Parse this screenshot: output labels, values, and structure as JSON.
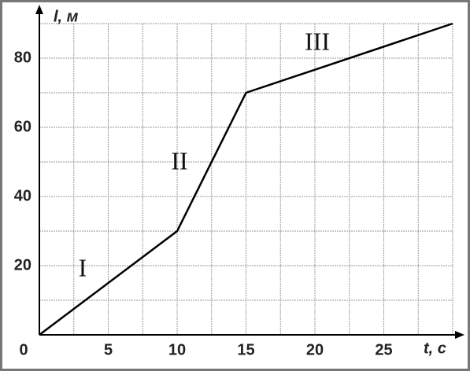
{
  "chart_data": {
    "type": "line",
    "x": [
      0,
      10,
      15,
      30
    ],
    "values": [
      0,
      30,
      70,
      90
    ],
    "color": "#000000",
    "xlim": [
      0,
      30
    ],
    "ylim": [
      0,
      90
    ],
    "xticks": [
      0,
      5,
      10,
      15,
      20,
      25
    ],
    "yticks": [
      20,
      40,
      60,
      80
    ],
    "x_label": "t, c",
    "y_label": "l, м",
    "annotations": [
      "I",
      "II",
      "III"
    ],
    "grid": {
      "x_step": 2.5,
      "y_step": 10
    }
  }
}
